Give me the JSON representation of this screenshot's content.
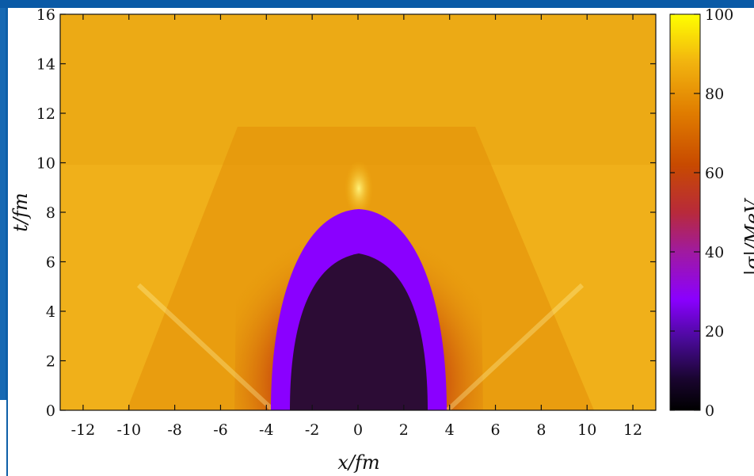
{
  "chart_data": {
    "type": "heatmap",
    "title": "",
    "xlabel": "x/fm",
    "ylabel": "t/fm",
    "colorbar_label": "|σ|/MeV",
    "xlim": [
      -13,
      13
    ],
    "ylim": [
      0,
      16
    ],
    "x_ticks": [
      -12,
      -10,
      -8,
      -6,
      -4,
      -2,
      0,
      2,
      4,
      6,
      8,
      10,
      12
    ],
    "y_ticks": [
      0,
      2,
      4,
      6,
      8,
      10,
      12,
      14,
      16
    ],
    "colorbar_range": [
      0,
      100
    ],
    "colorbar_ticks": [
      0,
      20,
      40,
      60,
      80,
      100
    ],
    "colormap": [
      "#000000",
      "#3a0a6a",
      "#8a00ff",
      "#b0196a",
      "#c84a00",
      "#e68a00",
      "#ffd23a",
      "#ffff00"
    ],
    "features": {
      "background_value": 90,
      "central_region": {
        "value_min": 0,
        "x_half_width_at_t0": 3.5,
        "t_max": 8,
        "boundary_value": 20
      },
      "bright_spot": {
        "x": 0,
        "t": 8.8,
        "value": 98
      }
    }
  }
}
